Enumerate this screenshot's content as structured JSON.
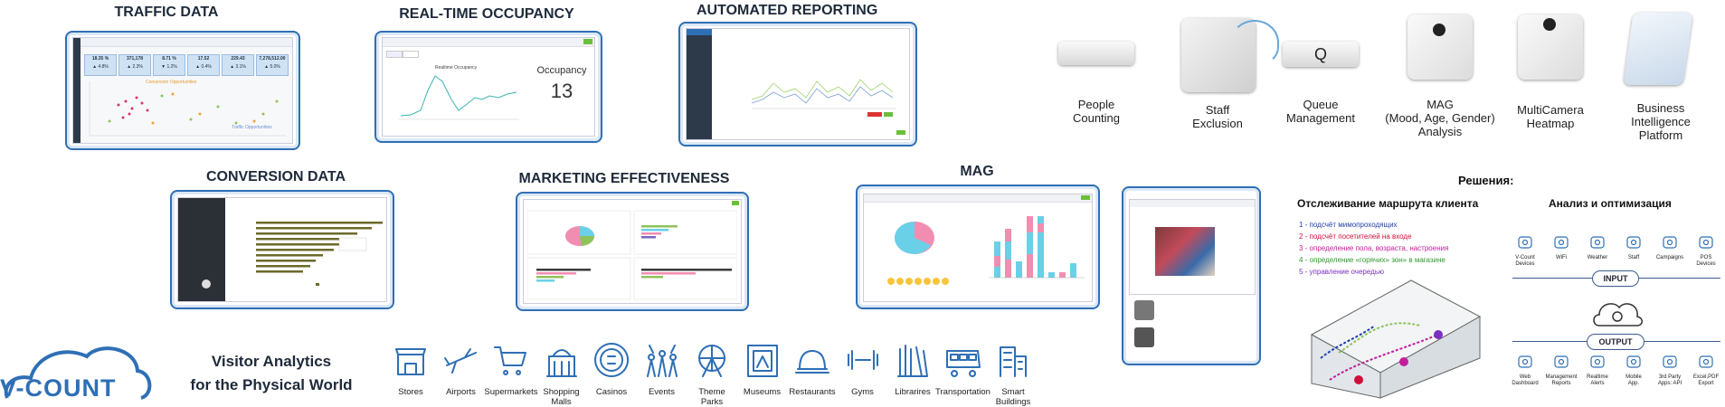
{
  "sections": {
    "traffic": {
      "title": "TRAFFIC DATA",
      "kpis": [
        {
          "value": "18.35 %",
          "sub": "▲ 4.8%"
        },
        {
          "value": "371,178",
          "sub": "▲ 2.3%"
        },
        {
          "value": "8.71 %",
          "sub": "▼ 1.2%"
        },
        {
          "value": "17.52",
          "sub": "▲ 0.4%"
        },
        {
          "value": "229.43",
          "sub": "▲ 3.1%"
        },
        {
          "value": "7,278,512.00",
          "sub": "▲ 5.0%"
        }
      ]
    },
    "occupancy": {
      "title": "REAL-TIME OCCUPANCY",
      "label": "Occupancy",
      "value": "13"
    },
    "reporting": {
      "title": "AUTOMATED REPORTING"
    },
    "conversion": {
      "title": "CONVERSION DATA"
    },
    "marketing": {
      "title": "MARKETING EFFECTIVENESS"
    },
    "mag": {
      "title": "MAG"
    }
  },
  "devices": [
    {
      "label": "People\nCounting"
    },
    {
      "label": "Staff\nExclusion"
    },
    {
      "label": "Queue\nManagement"
    },
    {
      "label": "MAG\n(Mood, Age, Gender)\nAnalysis"
    },
    {
      "label": "MultiCamera\nHeatmap"
    },
    {
      "label": "Business\nIntelligence\nPlatform"
    }
  ],
  "queue_glyph": "Q",
  "brand": {
    "logo": "V-COUNT",
    "tagline_line1": "Visitor Analytics",
    "tagline_line2": "for the Physical World"
  },
  "industries": [
    {
      "label": "Stores",
      "icon": "store-icon"
    },
    {
      "label": "Airports",
      "icon": "airplane-icon"
    },
    {
      "label": "Supermarkets",
      "icon": "shopping-cart-icon"
    },
    {
      "label": "Shopping\nMalls",
      "icon": "mall-icon"
    },
    {
      "label": "Casinos",
      "icon": "casino-chip-icon"
    },
    {
      "label": "Events",
      "icon": "event-crowd-icon"
    },
    {
      "label": "Theme\nParks",
      "icon": "ferris-wheel-icon"
    },
    {
      "label": "Museums",
      "icon": "museum-icon"
    },
    {
      "label": "Restaurants",
      "icon": "cloche-icon"
    },
    {
      "label": "Gyms",
      "icon": "dumbbell-icon"
    },
    {
      "label": "Librarires",
      "icon": "books-icon"
    },
    {
      "label": "Transportation",
      "icon": "bus-icon"
    },
    {
      "label": "Smart\nBuildings",
      "icon": "building-icon"
    }
  ],
  "solutions": {
    "title": "Решения:",
    "left_title": "Отслеживание маршрута клиента",
    "right_title": "Анализ и оптимизация",
    "items": [
      {
        "text": "1 - подсчёт мимопроходящих",
        "color": "#1f3fa8"
      },
      {
        "text": "2 - подсчёт посетителей на входе",
        "color": "#d0103a"
      },
      {
        "text": "3 - определение пола, возраста, настроения",
        "color": "#c21e9b"
      },
      {
        "text": "4 - определение «горячих» зон» в магазине",
        "color": "#2e9a2e"
      },
      {
        "text": "5 - управление очередью",
        "color": "#7a2fc0"
      }
    ]
  },
  "analysis": {
    "input_label": "INPUT",
    "output_label": "OUTPUT",
    "inputs": [
      {
        "label": "V-Count\nDevices",
        "icon": "device-icon"
      },
      {
        "label": "WiFi",
        "icon": "wifi-icon"
      },
      {
        "label": "Weather",
        "icon": "cloud-icon"
      },
      {
        "label": "Staff",
        "icon": "staff-icon"
      },
      {
        "label": "Campaigns",
        "icon": "megaphone-icon"
      },
      {
        "label": "POS\nDevices",
        "icon": "pos-icon"
      }
    ],
    "outputs": [
      {
        "label": "Web\nDashboard",
        "icon": "gear-icon"
      },
      {
        "label": "Management\nReports",
        "icon": "report-icon"
      },
      {
        "label": "Realtime\nAlerts",
        "icon": "alarm-icon"
      },
      {
        "label": "Mobile\nApp.",
        "icon": "mobile-icon"
      },
      {
        "label": "3rd Party\nApps: API",
        "icon": "api-icon"
      },
      {
        "label": "Excel,PDF\nExport",
        "icon": "export-icon"
      }
    ]
  },
  "colors": {
    "brand_blue": "#2f6fb5",
    "header_dark": "#1e2a3a",
    "chart_green": "#8fc35a",
    "pink": "#f28db2",
    "cyan": "#6ad0e8"
  }
}
